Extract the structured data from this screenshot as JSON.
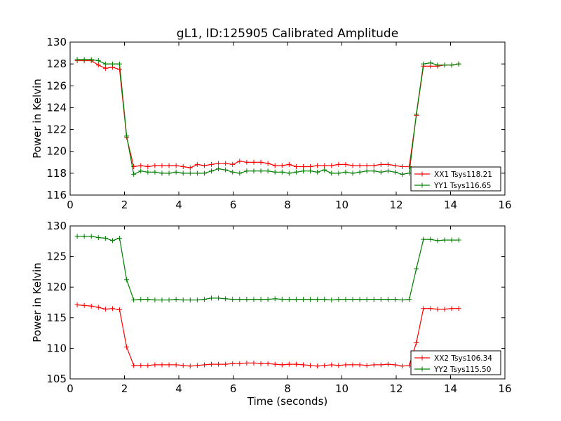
{
  "figure": {
    "title": "gL1, ID:125905 Calibrated Amplitude"
  },
  "chart_data": [
    {
      "type": "line",
      "title": "gL1, ID:125905 Calibrated Amplitude",
      "xlabel": "",
      "ylabel": "Power in Kelvin",
      "xlim": [
        0,
        16
      ],
      "ylim": [
        116,
        130
      ],
      "xticks": [
        0,
        2,
        4,
        6,
        8,
        10,
        12,
        14,
        16
      ],
      "yticks": [
        116,
        118,
        120,
        122,
        124,
        126,
        128,
        130
      ],
      "grid": false,
      "legend": "bottom-right",
      "x": [
        0.26,
        0.52,
        0.78,
        1.04,
        1.3,
        1.56,
        1.82,
        2.08,
        2.34,
        2.6,
        2.86,
        3.12,
        3.38,
        3.64,
        3.9,
        4.16,
        4.42,
        4.68,
        4.94,
        5.2,
        5.46,
        5.72,
        5.98,
        6.24,
        6.5,
        6.76,
        7.02,
        7.28,
        7.54,
        7.8,
        8.06,
        8.32,
        8.58,
        8.84,
        9.1,
        9.36,
        9.62,
        9.88,
        10.14,
        10.4,
        10.66,
        10.92,
        11.18,
        11.44,
        11.7,
        11.96,
        12.22,
        12.48,
        12.74,
        13.0,
        13.26,
        13.52,
        13.78,
        14.04,
        14.3
      ],
      "series": [
        {
          "name": "XX1 Tsys118.21",
          "color": "#ff0000",
          "values": [
            128.3,
            128.3,
            128.3,
            127.9,
            127.6,
            127.7,
            127.5,
            121.3,
            118.6,
            118.7,
            118.6,
            118.7,
            118.7,
            118.7,
            118.7,
            118.6,
            118.5,
            118.8,
            118.7,
            118.8,
            118.9,
            118.9,
            118.8,
            119.1,
            119.0,
            119.0,
            119.0,
            118.9,
            118.7,
            118.7,
            118.8,
            118.6,
            118.6,
            118.6,
            118.7,
            118.7,
            118.7,
            118.8,
            118.8,
            118.7,
            118.7,
            118.7,
            118.7,
            118.8,
            118.8,
            118.7,
            118.6,
            118.6,
            123.3,
            127.8,
            127.8,
            127.8,
            127.9,
            127.9,
            128.0
          ]
        },
        {
          "name": "YY1 Tsys116.65",
          "color": "#008000",
          "values": [
            128.4,
            128.4,
            128.4,
            128.3,
            128.0,
            128.0,
            128.0,
            121.4,
            117.9,
            118.2,
            118.1,
            118.1,
            118.0,
            118.0,
            118.1,
            118.0,
            118.0,
            118.0,
            118.0,
            118.2,
            118.4,
            118.3,
            118.1,
            118.0,
            118.2,
            118.2,
            118.2,
            118.2,
            118.1,
            118.1,
            118.0,
            118.1,
            118.2,
            118.2,
            118.1,
            118.3,
            118.0,
            118.0,
            118.1,
            118.0,
            118.1,
            118.2,
            118.2,
            118.1,
            118.2,
            118.1,
            117.9,
            118.0,
            123.4,
            128.0,
            128.1,
            127.9,
            127.9,
            127.9,
            128.0
          ]
        }
      ]
    },
    {
      "type": "line",
      "title": "",
      "xlabel": "Time (seconds)",
      "ylabel": "Power in Kelvin",
      "xlim": [
        0,
        16
      ],
      "ylim": [
        105,
        130
      ],
      "xticks": [
        0,
        2,
        4,
        6,
        8,
        10,
        12,
        14,
        16
      ],
      "yticks": [
        105,
        110,
        115,
        120,
        125,
        130
      ],
      "grid": false,
      "legend": "bottom-right",
      "x": [
        0.26,
        0.52,
        0.78,
        1.04,
        1.3,
        1.56,
        1.82,
        2.08,
        2.34,
        2.6,
        2.86,
        3.12,
        3.38,
        3.64,
        3.9,
        4.16,
        4.42,
        4.68,
        4.94,
        5.2,
        5.46,
        5.72,
        5.98,
        6.24,
        6.5,
        6.76,
        7.02,
        7.28,
        7.54,
        7.8,
        8.06,
        8.32,
        8.58,
        8.84,
        9.1,
        9.36,
        9.62,
        9.88,
        10.14,
        10.4,
        10.66,
        10.92,
        11.18,
        11.44,
        11.7,
        11.96,
        12.22,
        12.48,
        12.74,
        13.0,
        13.26,
        13.52,
        13.78,
        14.04,
        14.3
      ],
      "series": [
        {
          "name": "XX2 Tsys106.34",
          "color": "#ff0000",
          "values": [
            117.1,
            117.0,
            116.9,
            116.7,
            116.4,
            116.5,
            116.3,
            110.2,
            107.2,
            107.2,
            107.2,
            107.3,
            107.3,
            107.3,
            107.3,
            107.2,
            107.1,
            107.2,
            107.3,
            107.4,
            107.4,
            107.4,
            107.5,
            107.5,
            107.6,
            107.6,
            107.5,
            107.5,
            107.4,
            107.3,
            107.4,
            107.4,
            107.3,
            107.2,
            107.1,
            107.2,
            107.3,
            107.2,
            107.3,
            107.3,
            107.3,
            107.2,
            107.3,
            107.3,
            107.4,
            107.3,
            107.1,
            107.2,
            110.9,
            116.5,
            116.5,
            116.4,
            116.4,
            116.5,
            116.5
          ]
        },
        {
          "name": "YY2 Tsys115.50",
          "color": "#008000",
          "values": [
            128.3,
            128.3,
            128.3,
            128.1,
            128.0,
            127.6,
            128.0,
            121.2,
            117.9,
            118.0,
            118.0,
            117.9,
            117.9,
            117.9,
            118.0,
            117.9,
            117.9,
            117.9,
            118.0,
            118.2,
            118.2,
            118.1,
            118.0,
            118.0,
            118.0,
            118.0,
            118.0,
            118.0,
            118.1,
            118.0,
            118.0,
            118.0,
            118.0,
            118.0,
            118.0,
            118.0,
            117.9,
            118.0,
            118.0,
            118.0,
            118.0,
            118.0,
            118.0,
            118.0,
            118.0,
            118.0,
            117.9,
            118.0,
            123.0,
            127.8,
            127.8,
            127.6,
            127.7,
            127.7,
            127.7
          ]
        }
      ]
    }
  ]
}
